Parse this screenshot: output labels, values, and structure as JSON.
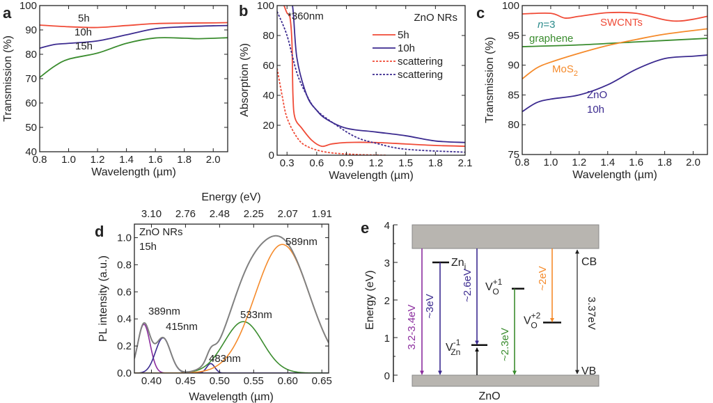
{
  "chart_data": [
    {
      "panel": "a",
      "type": "line",
      "xlabel": "Wavelength (µm)",
      "ylabel": "Transmission (%)",
      "xlim": [
        0.8,
        2.1
      ],
      "ylim": [
        40,
        100
      ],
      "xticks": [
        "0.8",
        "1.0",
        "1.2",
        "1.4",
        "1.6",
        "1.8",
        "2.0"
      ],
      "yticks": [
        "40",
        "50",
        "60",
        "70",
        "80",
        "90",
        "100"
      ],
      "series": [
        {
          "name": "5h",
          "color": "#f04a36",
          "points": [
            [
              0.8,
              92
            ],
            [
              1.0,
              91.3
            ],
            [
              1.2,
              91
            ],
            [
              1.4,
              91.8
            ],
            [
              1.6,
              92.6
            ],
            [
              1.8,
              92.8
            ],
            [
              2.0,
              92.9
            ],
            [
              2.1,
              93
            ]
          ]
        },
        {
          "name": "10h",
          "color": "#3b2a8f",
          "points": [
            [
              0.8,
              82.5
            ],
            [
              0.9,
              84
            ],
            [
              1.0,
              84.5
            ],
            [
              1.2,
              85.5
            ],
            [
              1.4,
              88
            ],
            [
              1.6,
              90.5
            ],
            [
              1.8,
              91.3
            ],
            [
              2.0,
              91.7
            ],
            [
              2.1,
              91.8
            ]
          ]
        },
        {
          "name": "15h",
          "color": "#3a8c2e",
          "points": [
            [
              0.8,
              70.5
            ],
            [
              0.9,
              75
            ],
            [
              1.0,
              78
            ],
            [
              1.2,
              80.5
            ],
            [
              1.4,
              84.5
            ],
            [
              1.6,
              86.7
            ],
            [
              1.8,
              86.6
            ],
            [
              1.9,
              86.4
            ],
            [
              2.1,
              86.8
            ]
          ]
        }
      ]
    },
    {
      "panel": "b",
      "type": "line",
      "title": "ZnO NRs",
      "annotation": "*360nm",
      "xlabel": "Wavelength (µm)",
      "ylabel": "Absorption (%)",
      "xlim": [
        0.2,
        2.1
      ],
      "ylim": [
        0,
        100
      ],
      "legend": "top-right",
      "xticks": [
        "0.3",
        "0.6",
        "0.9",
        "1.2",
        "1.5",
        "1.8",
        "2.1"
      ],
      "yticks": [
        "0",
        "20",
        "40",
        "60",
        "80",
        "100"
      ],
      "series": [
        {
          "name": "5h",
          "color": "#f04a36",
          "dashed": false,
          "points": [
            [
              0.27,
              100
            ],
            [
              0.3,
              95
            ],
            [
              0.33,
              92
            ],
            [
              0.35,
              75
            ],
            [
              0.36,
              40
            ],
            [
              0.38,
              25
            ],
            [
              0.45,
              18
            ],
            [
              0.55,
              10
            ],
            [
              0.65,
              6
            ],
            [
              0.75,
              7.5
            ],
            [
              0.9,
              8.5
            ],
            [
              1.2,
              8.5
            ],
            [
              1.5,
              7.5
            ],
            [
              1.8,
              6.5
            ],
            [
              2.1,
              6
            ]
          ]
        },
        {
          "name": "10h",
          "color": "#3b2a8f",
          "dashed": false,
          "points": [
            [
              0.3,
              100
            ],
            [
              0.355,
              100
            ],
            [
              0.4,
              65
            ],
            [
              0.5,
              40
            ],
            [
              0.6,
              30
            ],
            [
              0.7,
              24
            ],
            [
              0.9,
              18
            ],
            [
              1.2,
              15.5
            ],
            [
              1.5,
              13
            ],
            [
              1.8,
              9.5
            ],
            [
              2.1,
              8.5
            ]
          ]
        },
        {
          "name": "scattering",
          "color": "#f04a36",
          "dashed": true,
          "points": [
            [
              0.2,
              58
            ],
            [
              0.25,
              40
            ],
            [
              0.3,
              25
            ],
            [
              0.4,
              12
            ],
            [
              0.5,
              6
            ],
            [
              0.7,
              2
            ],
            [
              1.0,
              0.5
            ],
            [
              1.3,
              0
            ]
          ]
        },
        {
          "name": "scattering",
          "color": "#3b2a8f",
          "dashed": true,
          "points": [
            [
              0.2,
              96
            ],
            [
              0.3,
              80
            ],
            [
              0.4,
              55
            ],
            [
              0.5,
              40
            ],
            [
              0.6,
              30
            ],
            [
              0.8,
              20
            ],
            [
              1.0,
              12
            ],
            [
              1.2,
              8
            ],
            [
              1.5,
              4
            ],
            [
              2.1,
              2
            ]
          ]
        }
      ]
    },
    {
      "panel": "c",
      "type": "line",
      "xlabel": "Wavelength (µm)",
      "ylabel": "Transmission (%)",
      "xlim": [
        0.8,
        2.1
      ],
      "ylim": [
        75,
        100
      ],
      "xticks": [
        "0.8",
        "1.0",
        "1.2",
        "1.4",
        "1.6",
        "1.8",
        "2.0"
      ],
      "yticks": [
        "75",
        "80",
        "85",
        "90",
        "95",
        "100"
      ],
      "series": [
        {
          "name": "SWCNTs",
          "color": "#f04a36",
          "points": [
            [
              0.8,
              98.6
            ],
            [
              1.0,
              98.7
            ],
            [
              1.1,
              97.9
            ],
            [
              1.2,
              98.2
            ],
            [
              1.4,
              98.8
            ],
            [
              1.6,
              98.7
            ],
            [
              1.8,
              97.6
            ],
            [
              1.9,
              97.4
            ],
            [
              2.0,
              97.7
            ],
            [
              2.1,
              98.2
            ]
          ]
        },
        {
          "name": "n=3 graphene",
          "label_parts": {
            "n": "n",
            "eq": "=3",
            "rest": "graphene"
          },
          "color": "#3a8c2e",
          "label_color": "#2a8a8a",
          "points": [
            [
              0.8,
              93.1
            ],
            [
              1.2,
              93.4
            ],
            [
              1.6,
              93.9
            ],
            [
              2.1,
              94.5
            ]
          ]
        },
        {
          "name": "MoS2",
          "label_parts": {
            "base": "MoS",
            "sub": "2"
          },
          "color": "#f58a2a",
          "points": [
            [
              0.8,
              87.7
            ],
            [
              0.9,
              89.5
            ],
            [
              1.0,
              90.5
            ],
            [
              1.2,
              92
            ],
            [
              1.4,
              93.3
            ],
            [
              1.6,
              94.3
            ],
            [
              1.8,
              95.2
            ],
            [
              2.1,
              96.1
            ]
          ]
        },
        {
          "name": "ZnO 10h",
          "label_parts": {
            "line1": "ZnO",
            "line2": "10h"
          },
          "color": "#3b2a8f",
          "points": [
            [
              0.8,
              82.2
            ],
            [
              0.9,
              83.7
            ],
            [
              1.0,
              84.3
            ],
            [
              1.2,
              85
            ],
            [
              1.4,
              86.7
            ],
            [
              1.6,
              89.3
            ],
            [
              1.8,
              91.1
            ],
            [
              2.0,
              91.5
            ],
            [
              2.1,
              91.7
            ]
          ]
        }
      ]
    },
    {
      "panel": "d",
      "type": "line",
      "title_lines": [
        "ZnO NRs",
        "15h"
      ],
      "xlabel": "Wavelength (µm)",
      "ylabel": "PL intensity (a.u.)",
      "x2label": "Energy (eV)",
      "xlim": [
        0.375,
        0.66
      ],
      "ylim": [
        0,
        1.1
      ],
      "xticks": [
        "0.40",
        "0.45",
        "0.50",
        "0.55",
        "0.60",
        "0.65"
      ],
      "x2ticks": [
        "3.10",
        "2.76",
        "2.48",
        "2.25",
        "2.07",
        "1.91"
      ],
      "yticks": [
        "0.0",
        "0.2",
        "0.4",
        "0.6",
        "0.8",
        "1.0"
      ],
      "envelope_color": "#808080",
      "components": [
        {
          "label": "389nm",
          "center": 0.389,
          "amplitude": 0.36,
          "sigma": 0.009,
          "color": "#8b2c9e"
        },
        {
          "label": "415nm",
          "center": 0.417,
          "amplitude": 0.26,
          "sigma": 0.011,
          "color": "#3b2a8f"
        },
        {
          "label": "483nm",
          "center": 0.487,
          "amplitude": 0.07,
          "sigma": 0.006,
          "color": "#3b2a8f"
        },
        {
          "label": "533nm",
          "center": 0.535,
          "amplitude": 0.38,
          "sigma": 0.028,
          "color": "#3a8c2e"
        },
        {
          "label": "589nm",
          "center": 0.592,
          "amplitude": 0.95,
          "sigma": 0.04,
          "color": "#f58a2a"
        }
      ]
    }
  ],
  "diagram": {
    "panel": "e",
    "ylabel": "Energy (eV)",
    "yticks": [
      "0",
      "1",
      "2",
      "3",
      "4"
    ],
    "material": "ZnO",
    "band_color": "#b8b5b0",
    "cb": {
      "label": "CB",
      "energy": 3.37
    },
    "vb": {
      "label": "VB",
      "energy": 0
    },
    "gap_label": "3.37eV",
    "levels": [
      {
        "id": "zni",
        "base": "Zn",
        "sub": "i",
        "sup": "",
        "energy": 3.0
      },
      {
        "id": "vzn",
        "base": "V",
        "sub": "Zn",
        "sup": "-1",
        "energy": 0.8
      },
      {
        "id": "vo1",
        "base": "V",
        "sub": "O",
        "sup": "+1",
        "energy": 2.3
      },
      {
        "id": "vo2",
        "base": "V",
        "sub": "O",
        "sup": "+2",
        "energy": 1.4
      }
    ],
    "transitions": [
      {
        "label": "3.2-3.4eV",
        "from": 3.37,
        "to": 0,
        "color": "#8b2c9e"
      },
      {
        "label": "~3eV",
        "from": 3.0,
        "to": 0,
        "color": "#3b2a8f"
      },
      {
        "label": "~2.6eV",
        "from": 3.37,
        "to": 0.8,
        "color": "#3b2a8f"
      },
      {
        "label": "",
        "from": 0,
        "to": 0.8,
        "color": "#111111"
      },
      {
        "label": "~2.3eV",
        "from": 2.3,
        "to": 0,
        "color": "#3a8c2e"
      },
      {
        "label": "~2eV",
        "from": 3.37,
        "to": 1.4,
        "color": "#f58a2a"
      }
    ]
  }
}
